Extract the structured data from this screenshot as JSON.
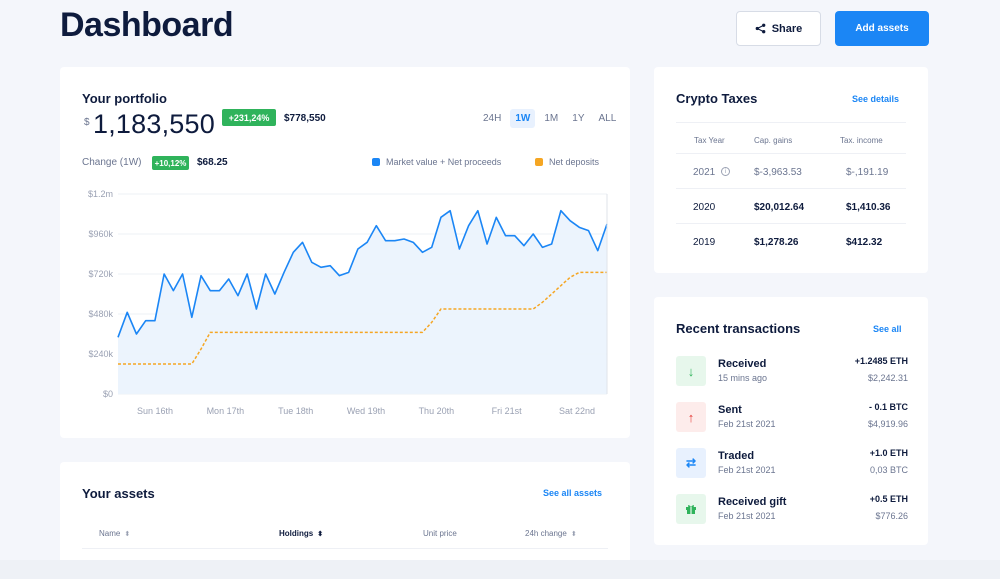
{
  "header": {
    "title": "Dashboard",
    "share_label": "Share",
    "add_label": "Add assets"
  },
  "portfolio": {
    "title": "Your portfolio",
    "currency": "$",
    "value": "1,183,550",
    "pct_badge": "+231,24%",
    "abs_change": "$778,550",
    "ranges": [
      "24H",
      "1W",
      "1M",
      "1Y",
      "ALL"
    ],
    "active_range": "1W",
    "change_label": "Change (1W)",
    "change_badge": "+10,12%",
    "change_value": "$68.25",
    "legend": [
      {
        "label": "Market value + Net proceeds",
        "color": "#1b86f5"
      },
      {
        "label": "Net deposits",
        "color": "#f5a623"
      }
    ]
  },
  "chart_data": {
    "type": "line",
    "y_tick_labels": [
      "$1.2m",
      "$960k",
      "$720k",
      "$480k",
      "$240k",
      "$0"
    ],
    "ylim": [
      0,
      1200000
    ],
    "x_tick_labels": [
      "Sun 16th",
      "Mon 17th",
      "Tue 18th",
      "Wed 19th",
      "Thu 20th",
      "Fri 21st",
      "Sat 22nd"
    ],
    "series": [
      {
        "name": "Market value + Net proceeds",
        "color": "#1b86f5",
        "values": [
          340000,
          490000,
          360000,
          440000,
          440000,
          720000,
          620000,
          720000,
          460000,
          710000,
          620000,
          620000,
          690000,
          590000,
          720000,
          510000,
          720000,
          600000,
          730000,
          850000,
          910000,
          790000,
          760000,
          770000,
          710000,
          730000,
          870000,
          910000,
          1010000,
          920000,
          920000,
          930000,
          910000,
          850000,
          880000,
          1060000,
          1100000,
          870000,
          1010000,
          1100000,
          900000,
          1060000,
          950000,
          950000,
          890000,
          960000,
          880000,
          900000,
          1100000,
          1040000,
          1000000,
          980000,
          860000,
          1020000
        ]
      },
      {
        "name": "Net deposits",
        "color": "#f5a623",
        "values": [
          180000,
          180000,
          180000,
          180000,
          180000,
          180000,
          180000,
          180000,
          180000,
          270000,
          370000,
          370000,
          370000,
          370000,
          370000,
          370000,
          370000,
          370000,
          370000,
          370000,
          370000,
          370000,
          370000,
          370000,
          370000,
          370000,
          370000,
          370000,
          370000,
          370000,
          370000,
          370000,
          370000,
          370000,
          430000,
          510000,
          510000,
          510000,
          510000,
          510000,
          510000,
          510000,
          510000,
          510000,
          510000,
          510000,
          550000,
          600000,
          650000,
          700000,
          730000,
          730000,
          730000,
          730000
        ]
      }
    ]
  },
  "assets": {
    "title": "Your assets",
    "see_all": "See all assets",
    "columns": [
      "Name",
      "Holdings",
      "Unit price",
      "24h change"
    ]
  },
  "taxes": {
    "title": "Crypto Taxes",
    "see_details": "See details",
    "columns": [
      "Tax Year",
      "Cap. gains",
      "Tax. income"
    ],
    "rows": [
      {
        "year": "2021",
        "gains": "$-3,963.53",
        "income": "$-,191.19"
      },
      {
        "year": "2020",
        "gains": "$20,012.64",
        "income": "$1,410.36"
      },
      {
        "year": "2019",
        "gains": "$1,278.26",
        "income": "$412.32"
      }
    ]
  },
  "recent": {
    "title": "Recent transactions",
    "see_all": "See all",
    "items": [
      {
        "name": "Received",
        "time": "15 mins ago",
        "amount": "+1.2485 ETH",
        "usd": "$2,242.31",
        "icon": "arrow-down-icon",
        "color": "#2fb35b",
        "bg": "#e7f7ec"
      },
      {
        "name": "Sent",
        "time": "Feb 21st 2021",
        "amount": "- 0.1 BTC",
        "usd": "$4,919.96",
        "icon": "arrow-up-icon",
        "color": "#e53935",
        "bg": "#fdeceb"
      },
      {
        "name": "Traded",
        "time": "Feb 21st 2021",
        "amount": "+1.0 ETH",
        "usd": "0,03 BTC",
        "icon": "swap-icon",
        "color": "#1b86f5",
        "bg": "#e8f1fe"
      },
      {
        "name": "Received gift",
        "time": "Feb 21st 2021",
        "amount": "+0.5 ETH",
        "usd": "$776.26",
        "icon": "gift-icon",
        "color": "#2fb35b",
        "bg": "#e7f7ec"
      }
    ]
  }
}
